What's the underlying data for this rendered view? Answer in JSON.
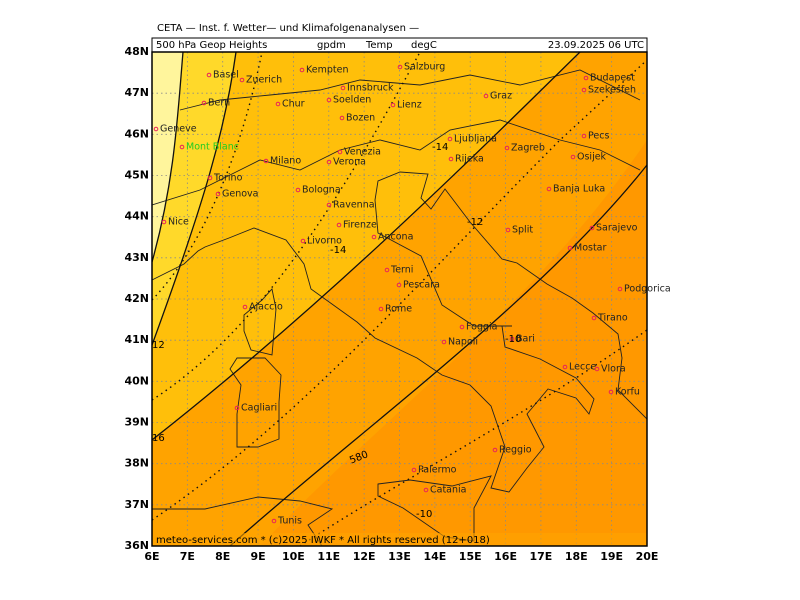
{
  "header": {
    "title": "CETA — Inst. f. Wetter— und Klimafolgenanalysen —",
    "fields": [
      "500 hPa Geop Heights",
      "gpdm",
      "Temp",
      "degC"
    ],
    "date": "23.09.2025 06 UTC"
  },
  "lat_labels": [
    "48N",
    "47N",
    "46N",
    "45N",
    "44N",
    "43N",
    "42N",
    "41N",
    "40N",
    "39N",
    "38N",
    "37N",
    "36N"
  ],
  "lon_labels": [
    "6E",
    "7E",
    "8E",
    "9E",
    "10E",
    "11E",
    "12E",
    "13E",
    "14E",
    "15E",
    "16E",
    "17E",
    "18E",
    "19E",
    "20E"
  ],
  "cities": [
    "Basel",
    "Zuerich",
    "Kempten",
    "Salzburg",
    "Budapest",
    "Szekesfeh",
    "Bern",
    "Chur",
    "Innsbruck",
    "Soelden",
    "Lienz",
    "Graz",
    "Geneve",
    "Bozen",
    "Mont Blanc",
    "Milano",
    "Venezia",
    "Verona",
    "Ljubljana",
    "Zagreb",
    "Pecs",
    "Osijek",
    "Rijeka",
    "Torino",
    "Bologna",
    "Genova",
    "Banja Luka",
    "Ravenna",
    "Nice",
    "Firenze",
    "Ancona",
    "Split",
    "Sarajevo",
    "Livorno",
    "Mostar",
    "Terni",
    "Podgorica",
    "Pescara",
    "Ajaccio",
    "Rome",
    "Tirano",
    "Foggia",
    "Napoli",
    "Bari",
    "Lecce",
    "Vlora",
    "Korfu",
    "Cagliari",
    "Reggio",
    "Palermo",
    "Catania",
    "Tunis"
  ],
  "contour_labels": [
    "580",
    "-14",
    "-14",
    "-12",
    "-10",
    "-10",
    "16",
    "12"
  ],
  "footer": "meteo-services.com * (c)2025 IWKF * All rights reserved (12+018)"
}
